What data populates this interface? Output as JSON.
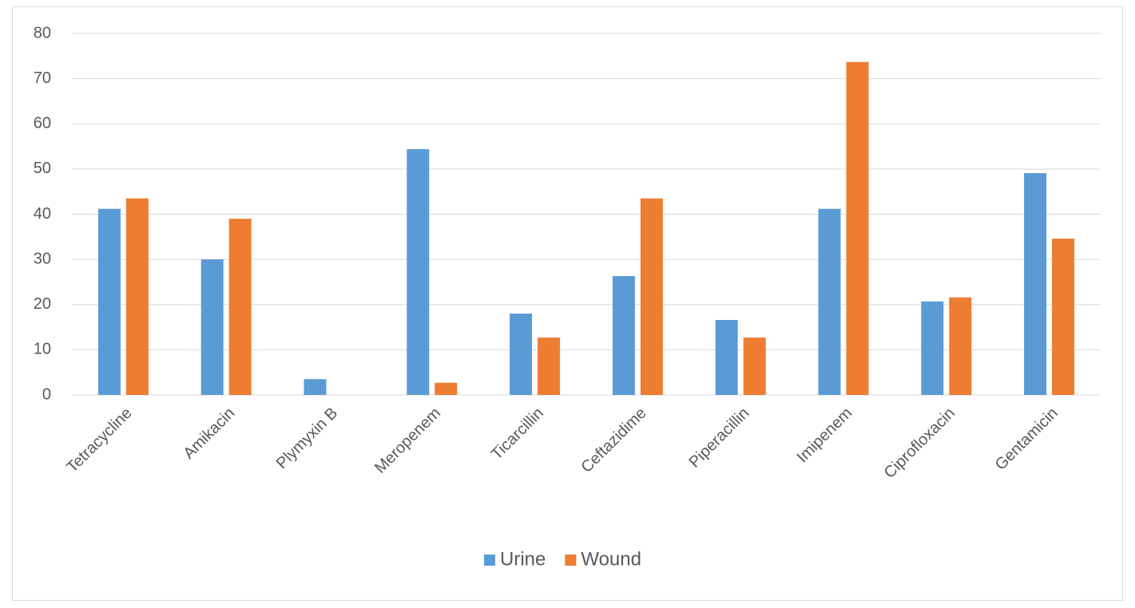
{
  "chart_data": {
    "type": "bar",
    "categories": [
      "Tetracycline",
      "Amikacin",
      "Plymyxin B",
      "Meropenem",
      "Ticarcillin",
      "Ceftazidime",
      "Piperacillin",
      "Imipenem",
      "Ciprofloxacin",
      "Gentamicin"
    ],
    "series": [
      {
        "name": "Urine",
        "color": "#5b9bd5",
        "values": [
          41.2,
          30,
          3.5,
          54.4,
          18,
          26.3,
          16.6,
          41.2,
          20.7,
          49.1
        ]
      },
      {
        "name": "Wound",
        "color": "#ed7d31",
        "values": [
          43.5,
          39,
          0,
          2.7,
          12.7,
          43.5,
          12.7,
          73.7,
          21.6,
          34.6
        ]
      }
    ],
    "ylim": [
      0,
      80
    ],
    "yticks": [
      0,
      10,
      20,
      30,
      40,
      50,
      60,
      70,
      80
    ],
    "grid": true,
    "legend": "bottom"
  }
}
